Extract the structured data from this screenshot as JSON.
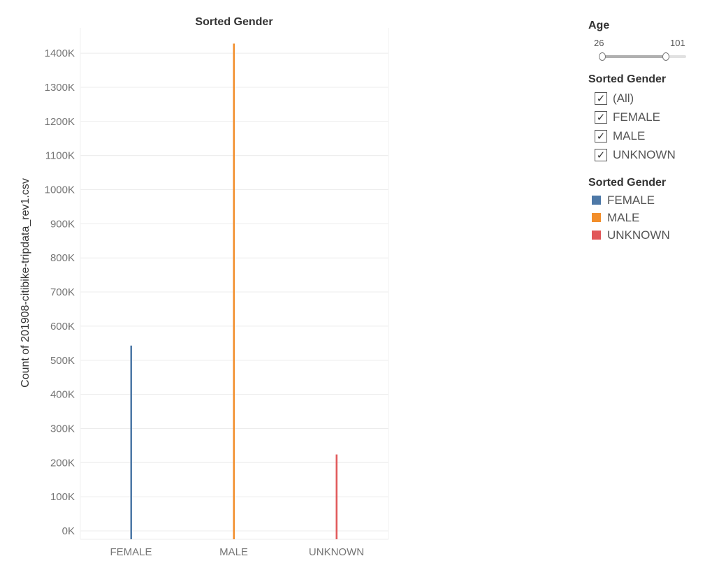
{
  "chart_data": {
    "type": "bar",
    "title": "Sorted Gender",
    "xlabel": "",
    "ylabel": "Count of 201908-citibike-tripdata_rev1.csv",
    "categories": [
      "FEMALE",
      "MALE",
      "UNKNOWN"
    ],
    "values": [
      543000,
      1428000,
      224000
    ],
    "colors": [
      "#4e79a7",
      "#f28e2b",
      "#e15759"
    ],
    "ylim": [
      0,
      1430000
    ],
    "yticks": [
      0,
      100000,
      200000,
      300000,
      400000,
      500000,
      600000,
      700000,
      800000,
      900000,
      1000000,
      1100000,
      1200000,
      1300000,
      1400000
    ],
    "ytick_labels": [
      "0K",
      "100K",
      "200K",
      "300K",
      "400K",
      "500K",
      "600K",
      "700K",
      "800K",
      "900K",
      "1000K",
      "1100K",
      "1200K",
      "1300K",
      "1400K"
    ],
    "grid": true,
    "legend": "right"
  },
  "age_filter": {
    "title": "Age",
    "min_label": "26",
    "max_label": "101",
    "range_min": 26,
    "range_max": 101,
    "selected_fraction": 0.75
  },
  "gender_filter": {
    "title": "Sorted Gender",
    "items": [
      {
        "label": "(All)",
        "checked": true
      },
      {
        "label": "FEMALE",
        "checked": true
      },
      {
        "label": "MALE",
        "checked": true
      },
      {
        "label": "UNKNOWN",
        "checked": true
      }
    ]
  },
  "legend": {
    "title": "Sorted Gender",
    "items": [
      {
        "label": "FEMALE",
        "color": "#4e79a7"
      },
      {
        "label": "MALE",
        "color": "#f28e2b"
      },
      {
        "label": "UNKNOWN",
        "color": "#e15759"
      }
    ]
  }
}
